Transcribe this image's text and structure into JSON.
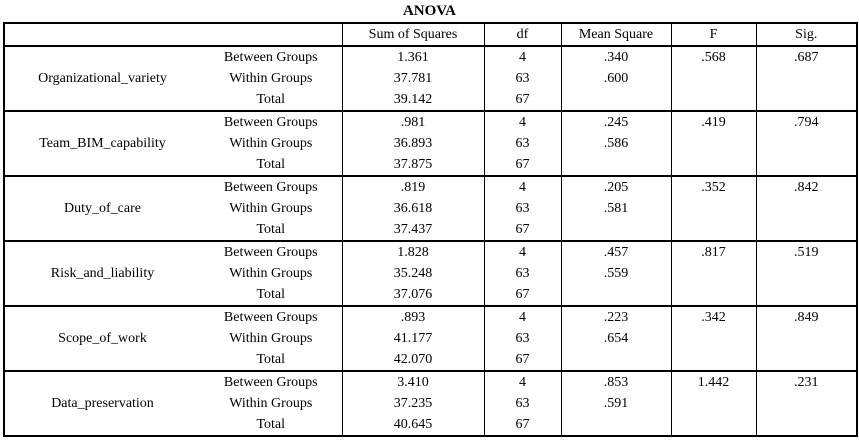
{
  "title": "ANOVA",
  "colors": {
    "border": "#000000",
    "text": "#000000",
    "background": "#ffffff"
  },
  "table": {
    "columns": [
      "Sum of Squares",
      "df",
      "Mean Square",
      "F",
      "Sig."
    ],
    "groups": [
      {
        "name": "Organizational_variety",
        "rows": [
          {
            "label": "Between Groups",
            "sum_of_squares": "1.361",
            "df": "4",
            "mean_square": ".340",
            "f": ".568",
            "sig": ".687"
          },
          {
            "label": "Within Groups",
            "sum_of_squares": "37.781",
            "df": "63",
            "mean_square": ".600",
            "f": "",
            "sig": ""
          },
          {
            "label": "Total",
            "sum_of_squares": "39.142",
            "df": "67",
            "mean_square": "",
            "f": "",
            "sig": ""
          }
        ]
      },
      {
        "name": "Team_BIM_capability",
        "rows": [
          {
            "label": "Between Groups",
            "sum_of_squares": ".981",
            "df": "4",
            "mean_square": ".245",
            "f": ".419",
            "sig": ".794"
          },
          {
            "label": "Within Groups",
            "sum_of_squares": "36.893",
            "df": "63",
            "mean_square": ".586",
            "f": "",
            "sig": ""
          },
          {
            "label": "Total",
            "sum_of_squares": "37.875",
            "df": "67",
            "mean_square": "",
            "f": "",
            "sig": ""
          }
        ]
      },
      {
        "name": "Duty_of_care",
        "rows": [
          {
            "label": "Between Groups",
            "sum_of_squares": ".819",
            "df": "4",
            "mean_square": ".205",
            "f": ".352",
            "sig": ".842"
          },
          {
            "label": "Within Groups",
            "sum_of_squares": "36.618",
            "df": "63",
            "mean_square": ".581",
            "f": "",
            "sig": ""
          },
          {
            "label": "Total",
            "sum_of_squares": "37.437",
            "df": "67",
            "mean_square": "",
            "f": "",
            "sig": ""
          }
        ]
      },
      {
        "name": "Risk_and_liability",
        "rows": [
          {
            "label": "Between Groups",
            "sum_of_squares": "1.828",
            "df": "4",
            "mean_square": ".457",
            "f": ".817",
            "sig": ".519"
          },
          {
            "label": "Within Groups",
            "sum_of_squares": "35.248",
            "df": "63",
            "mean_square": ".559",
            "f": "",
            "sig": ""
          },
          {
            "label": "Total",
            "sum_of_squares": "37.076",
            "df": "67",
            "mean_square": "",
            "f": "",
            "sig": ""
          }
        ]
      },
      {
        "name": "Scope_of_work",
        "rows": [
          {
            "label": "Between Groups",
            "sum_of_squares": ".893",
            "df": "4",
            "mean_square": ".223",
            "f": ".342",
            "sig": ".849"
          },
          {
            "label": "Within Groups",
            "sum_of_squares": "41.177",
            "df": "63",
            "mean_square": ".654",
            "f": "",
            "sig": ""
          },
          {
            "label": "Total",
            "sum_of_squares": "42.070",
            "df": "67",
            "mean_square": "",
            "f": "",
            "sig": ""
          }
        ]
      },
      {
        "name": "Data_preservation",
        "rows": [
          {
            "label": "Between Groups",
            "sum_of_squares": "3.410",
            "df": "4",
            "mean_square": ".853",
            "f": "1.442",
            "sig": ".231"
          },
          {
            "label": "Within Groups",
            "sum_of_squares": "37.235",
            "df": "63",
            "mean_square": ".591",
            "f": "",
            "sig": ""
          },
          {
            "label": "Total",
            "sum_of_squares": "40.645",
            "df": "67",
            "mean_square": "",
            "f": "",
            "sig": ""
          }
        ]
      }
    ]
  }
}
